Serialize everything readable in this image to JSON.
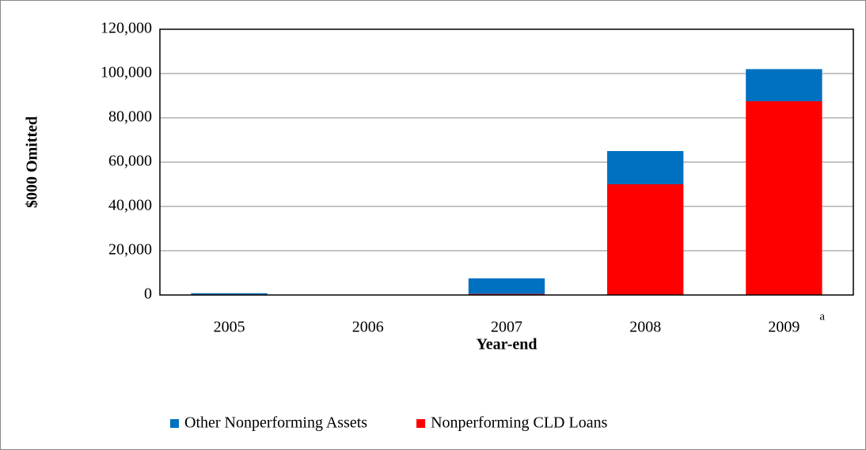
{
  "chart_data": {
    "type": "stacked-bar",
    "y_label": "$000 Omitted",
    "x_label": "Year-end",
    "categories": [
      "2005",
      "2006",
      "2007",
      "2008",
      "2009"
    ],
    "series": [
      {
        "name": "Nonperforming CLD Loans",
        "color": "#ff0000",
        "values": [
          0,
          0,
          500,
          50000,
          87500
        ]
      },
      {
        "name": "Other Nonperforming Assets",
        "color": "#0070c0",
        "values": [
          800,
          0,
          7000,
          15000,
          14500
        ]
      }
    ],
    "annotation": "a",
    "ylim": [
      0,
      120000
    ],
    "yticks": [
      0,
      {
        "value": 20000,
        "label": "20,000"
      },
      {
        "value": 40000,
        "label": "40,000"
      },
      {
        "value": 60000,
        "label": "60,000"
      },
      {
        "value": 80000,
        "label": "80,000"
      },
      {
        "value": 100000,
        "label": "100,000"
      },
      {
        "value": 120000,
        "label": "120,000"
      }
    ],
    "grid": true
  }
}
